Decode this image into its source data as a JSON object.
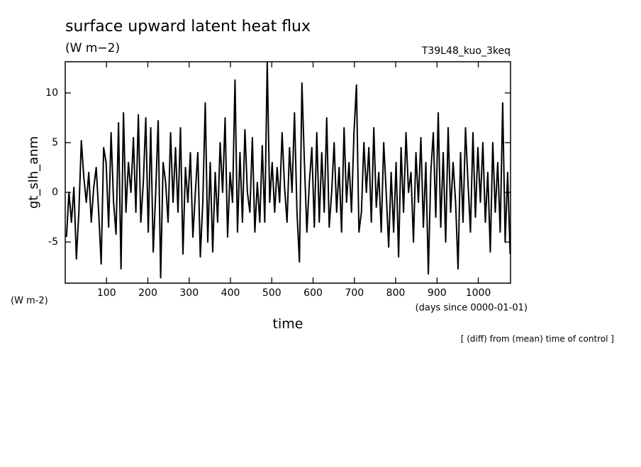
{
  "chart_data": {
    "type": "line",
    "title": "surface upward latent heat flux",
    "subtitle": "(W m−2)",
    "annotation": "T39L48_kuo_3keq",
    "y_label": "gt_slh_anm",
    "y_units": "(W m-2)",
    "x_label": "time",
    "x_units": "(days since 0000-01-01)",
    "note": "[ (diff) from (mean) time of control ]",
    "color": "#000000",
    "xlim": [
      0,
      1078
    ],
    "ylim": [
      -9.14,
      13.14
    ],
    "xticks": [
      100,
      200,
      300,
      400,
      500,
      600,
      700,
      800,
      900,
      1000
    ],
    "yticks": [
      -5,
      0,
      5,
      10
    ],
    "x": [
      3,
      9,
      15,
      21,
      27,
      33,
      39,
      45,
      51,
      57,
      63,
      69,
      75,
      81,
      87,
      93,
      99,
      105,
      111,
      117,
      123,
      129,
      135,
      141,
      147,
      153,
      159,
      165,
      171,
      177,
      183,
      189,
      195,
      201,
      207,
      213,
      219,
      225,
      231,
      237,
      243,
      249,
      255,
      261,
      267,
      273,
      279,
      285,
      291,
      297,
      303,
      309,
      315,
      321,
      327,
      333,
      339,
      345,
      351,
      357,
      363,
      369,
      375,
      381,
      387,
      393,
      399,
      405,
      411,
      417,
      423,
      429,
      435,
      441,
      447,
      453,
      459,
      465,
      471,
      477,
      483,
      489,
      495,
      501,
      507,
      513,
      519,
      525,
      531,
      537,
      543,
      549,
      555,
      561,
      567,
      573,
      579,
      585,
      591,
      597,
      603,
      609,
      615,
      621,
      627,
      633,
      639,
      645,
      651,
      657,
      663,
      669,
      675,
      681,
      687,
      693,
      699,
      705,
      711,
      717,
      723,
      729,
      735,
      741,
      747,
      753,
      759,
      765,
      771,
      777,
      783,
      789,
      795,
      801,
      807,
      813,
      819,
      825,
      831,
      837,
      843,
      849,
      855,
      861,
      867,
      873,
      879,
      885,
      891,
      897,
      903,
      909,
      915,
      921,
      927,
      933,
      939,
      945,
      951,
      957,
      963,
      969,
      975,
      981,
      987,
      993,
      999,
      1005,
      1011,
      1017,
      1023,
      1029,
      1035,
      1041,
      1047,
      1053,
      1059,
      1065,
      1071,
      1077
    ],
    "values": [
      -4.5,
      0,
      -3,
      0.5,
      -6.7,
      -2,
      5.2,
      1.5,
      -1,
      2,
      -3,
      0.5,
      2.5,
      -2,
      -7.2,
      4.5,
      3,
      -3.5,
      6,
      -1,
      -4.2,
      7,
      -7.7,
      8,
      -2,
      3,
      0,
      5.5,
      -2,
      7.8,
      -3,
      1,
      7.5,
      -4,
      6.5,
      -6,
      0,
      7.2,
      -8.6,
      3,
      1,
      -3,
      6,
      -1,
      4.5,
      -2,
      6.5,
      -6.2,
      2.5,
      -1,
      4,
      -4.5,
      0,
      4,
      -6.5,
      -1,
      9,
      -5,
      3,
      -6,
      2,
      -3,
      5,
      0,
      7.5,
      -4.5,
      2,
      -1,
      11.3,
      -4,
      4,
      -3,
      6.3,
      0,
      -2,
      5.5,
      -4,
      1,
      -3,
      4.7,
      -3,
      13.1,
      -1,
      3,
      -2,
      2.5,
      -1,
      6,
      0.5,
      -3,
      4.5,
      0,
      8,
      -2,
      -7,
      11,
      3,
      -4,
      1,
      4.5,
      -3.5,
      6,
      -3,
      4,
      -2,
      7.5,
      -3.5,
      0,
      5,
      -2,
      2.5,
      -4,
      6.5,
      -1,
      3,
      -2,
      6,
      10.8,
      -4,
      -2,
      5,
      0,
      4.5,
      -3,
      6.5,
      -1.5,
      2,
      -4,
      5,
      0,
      -5.5,
      2,
      -4,
      3,
      -6.5,
      4.5,
      -2,
      6,
      0,
      2,
      -5,
      4,
      -1,
      5.5,
      -3.5,
      3,
      -8.2,
      2,
      6,
      -2.5,
      8,
      -3.5,
      4,
      -5,
      6.5,
      -2,
      3,
      -1,
      -7.7,
      4,
      -3,
      6.5,
      1,
      -4,
      6,
      -2.5,
      4.5,
      -1,
      5,
      -3,
      2,
      -6,
      5,
      -2,
      3,
      -4,
      9,
      -5,
      2,
      -6.2
    ]
  }
}
